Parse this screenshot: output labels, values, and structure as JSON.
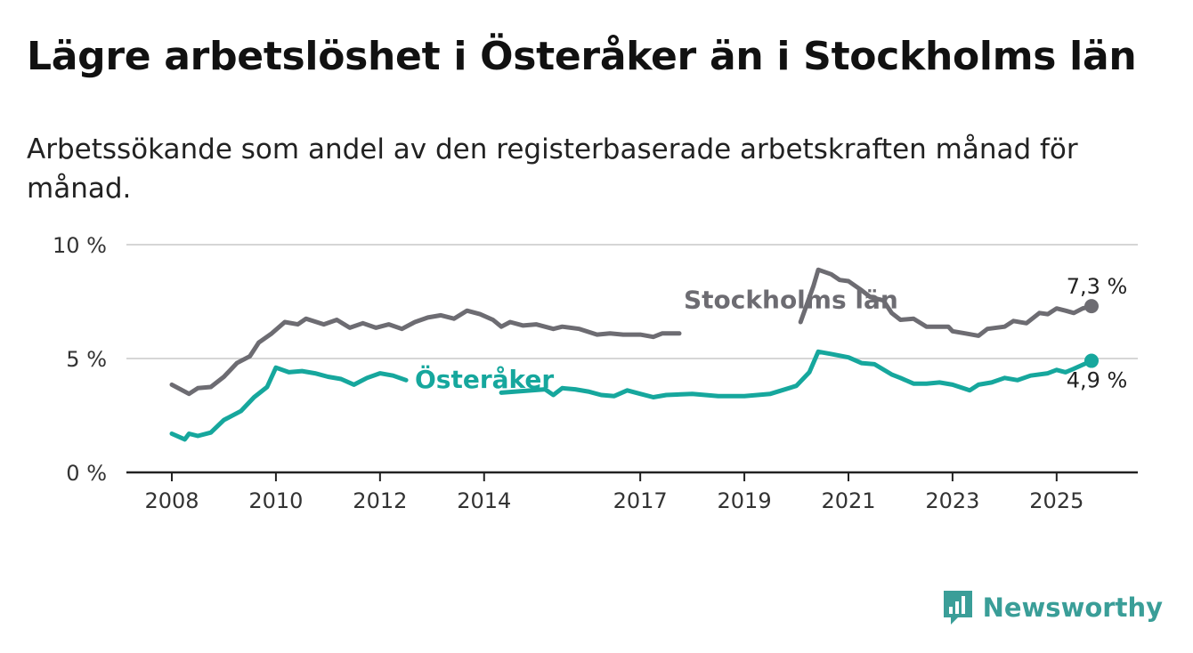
{
  "title": "Lägre arbetslöshet i Österåker än i Stockholms län",
  "subtitle": "Arbetssökande som andel av den registerbaserade arbetskraften månad för månad.",
  "brand": {
    "name": "Newsworthy",
    "color": "#3a9e98"
  },
  "chart_data": {
    "type": "line",
    "title": "Lägre arbetslöshet i Österåker än i Stockholms län",
    "subtitle": "Arbetssökande som andel av den registerbaserade arbetskraften månad för månad.",
    "xlabel": "",
    "ylabel": "",
    "xlim": [
      2008.0,
      2025.67
    ],
    "ylim": [
      0,
      10
    ],
    "grid": true,
    "x_ticks": [
      {
        "value": 2008,
        "label": "2008"
      },
      {
        "value": 2010,
        "label": "2010"
      },
      {
        "value": 2012,
        "label": "2012"
      },
      {
        "value": 2014,
        "label": "2014"
      },
      {
        "value": 2017,
        "label": "2017"
      },
      {
        "value": 2019,
        "label": "2019"
      },
      {
        "value": 2021,
        "label": "2021"
      },
      {
        "value": 2023,
        "label": "2023"
      },
      {
        "value": 2025,
        "label": "2025"
      }
    ],
    "y_ticks": [
      {
        "value": 0,
        "label": "0 %"
      },
      {
        "value": 5,
        "label": "5 %"
      },
      {
        "value": 10,
        "label": "10 %"
      }
    ],
    "series": [
      {
        "name": "Stockholms län",
        "color": "#6d6c72",
        "label_at": [
          2010.95,
          7.6
        ],
        "end_label": "7,3 %",
        "points": [
          [
            2008.0,
            3.85
          ],
          [
            2008.33,
            3.45
          ],
          [
            2008.5,
            3.7
          ],
          [
            2008.75,
            3.75
          ],
          [
            2009.0,
            4.2
          ],
          [
            2009.25,
            4.8
          ],
          [
            2009.5,
            5.1
          ],
          [
            2009.67,
            5.7
          ],
          [
            2009.92,
            6.1
          ],
          [
            2010.17,
            6.6
          ],
          [
            2010.42,
            6.5
          ],
          [
            2010.58,
            6.75
          ],
          [
            2010.92,
            6.5
          ],
          [
            2011.17,
            6.7
          ],
          [
            2011.42,
            6.35
          ],
          [
            2011.67,
            6.55
          ],
          [
            2011.92,
            6.35
          ],
          [
            2012.17,
            6.5
          ],
          [
            2012.42,
            6.3
          ],
          [
            2012.67,
            6.6
          ],
          [
            2012.92,
            6.8
          ],
          [
            2013.17,
            6.9
          ],
          [
            2013.42,
            6.75
          ],
          [
            2013.67,
            7.1
          ],
          [
            2013.92,
            6.95
          ],
          [
            2014.17,
            6.7
          ],
          [
            2014.33,
            6.4
          ],
          [
            2014.5,
            6.6
          ],
          [
            2014.75,
            6.45
          ],
          [
            2015.0,
            6.5
          ],
          [
            2015.33,
            6.3
          ],
          [
            2015.5,
            6.4
          ],
          [
            2015.83,
            6.3
          ],
          [
            2016.17,
            6.05
          ],
          [
            2016.42,
            6.1
          ],
          [
            2016.67,
            6.05
          ],
          [
            2017.0,
            6.05
          ],
          [
            2017.25,
            5.95
          ],
          [
            2017.42,
            6.1
          ],
          [
            2017.75,
            6.1
          ]
        ],
        "points_b": [
          [
            2020.08,
            6.6
          ],
          [
            2020.33,
            8.2
          ],
          [
            2020.42,
            8.9
          ],
          [
            2020.67,
            8.7
          ],
          [
            2020.83,
            8.45
          ],
          [
            2021.0,
            8.4
          ],
          [
            2021.25,
            8.0
          ],
          [
            2021.42,
            7.7
          ],
          [
            2021.67,
            7.55
          ],
          [
            2021.83,
            7.0
          ],
          [
            2022.0,
            6.7
          ],
          [
            2022.25,
            6.75
          ],
          [
            2022.5,
            6.4
          ],
          [
            2022.67,
            6.4
          ],
          [
            2022.92,
            6.4
          ],
          [
            2023.0,
            6.2
          ],
          [
            2023.25,
            6.1
          ],
          [
            2023.5,
            6.0
          ],
          [
            2023.67,
            6.3
          ],
          [
            2024.0,
            6.4
          ],
          [
            2024.17,
            6.65
          ],
          [
            2024.42,
            6.55
          ],
          [
            2024.67,
            7.0
          ],
          [
            2024.83,
            6.95
          ],
          [
            2025.0,
            7.2
          ],
          [
            2025.17,
            7.1
          ],
          [
            2025.33,
            7.0
          ],
          [
            2025.5,
            7.2
          ],
          [
            2025.67,
            7.3
          ]
        ]
      },
      {
        "name": "Österåker",
        "color": "#16a79d",
        "label_at": [
          2012.6,
          4.1
        ],
        "end_label": "4,9 %",
        "points": [
          [
            2008.0,
            1.7
          ],
          [
            2008.25,
            1.45
          ],
          [
            2008.33,
            1.7
          ],
          [
            2008.5,
            1.6
          ],
          [
            2008.75,
            1.75
          ],
          [
            2009.0,
            2.3
          ],
          [
            2009.33,
            2.7
          ],
          [
            2009.58,
            3.3
          ],
          [
            2009.83,
            3.75
          ],
          [
            2010.0,
            4.6
          ],
          [
            2010.25,
            4.4
          ],
          [
            2010.5,
            4.45
          ],
          [
            2010.75,
            4.35
          ],
          [
            2011.0,
            4.2
          ],
          [
            2011.25,
            4.1
          ],
          [
            2011.5,
            3.85
          ],
          [
            2011.75,
            4.15
          ],
          [
            2012.0,
            4.35
          ],
          [
            2012.25,
            4.25
          ],
          [
            2012.5,
            4.05
          ]
        ],
        "points_b": [
          [
            2014.33,
            3.5
          ],
          [
            2015.17,
            3.65
          ],
          [
            2015.33,
            3.4
          ],
          [
            2015.5,
            3.7
          ],
          [
            2015.75,
            3.65
          ],
          [
            2016.0,
            3.55
          ],
          [
            2016.25,
            3.4
          ],
          [
            2016.5,
            3.35
          ],
          [
            2016.75,
            3.6
          ],
          [
            2017.0,
            3.45
          ],
          [
            2017.25,
            3.3
          ],
          [
            2017.5,
            3.4
          ],
          [
            2018.0,
            3.45
          ],
          [
            2018.5,
            3.35
          ],
          [
            2019.0,
            3.35
          ],
          [
            2019.5,
            3.45
          ],
          [
            2020.0,
            3.8
          ],
          [
            2020.25,
            4.4
          ],
          [
            2020.42,
            5.3
          ],
          [
            2020.67,
            5.2
          ],
          [
            2021.0,
            5.05
          ],
          [
            2021.25,
            4.8
          ],
          [
            2021.5,
            4.75
          ],
          [
            2021.83,
            4.3
          ],
          [
            2022.0,
            4.15
          ],
          [
            2022.25,
            3.9
          ],
          [
            2022.5,
            3.9
          ],
          [
            2022.75,
            3.95
          ],
          [
            2023.0,
            3.85
          ],
          [
            2023.33,
            3.6
          ],
          [
            2023.5,
            3.85
          ],
          [
            2023.75,
            3.95
          ],
          [
            2024.0,
            4.15
          ],
          [
            2024.25,
            4.05
          ],
          [
            2024.5,
            4.25
          ],
          [
            2024.83,
            4.35
          ],
          [
            2025.0,
            4.5
          ],
          [
            2025.17,
            4.4
          ],
          [
            2025.33,
            4.55
          ],
          [
            2025.67,
            4.9
          ]
        ]
      }
    ]
  }
}
